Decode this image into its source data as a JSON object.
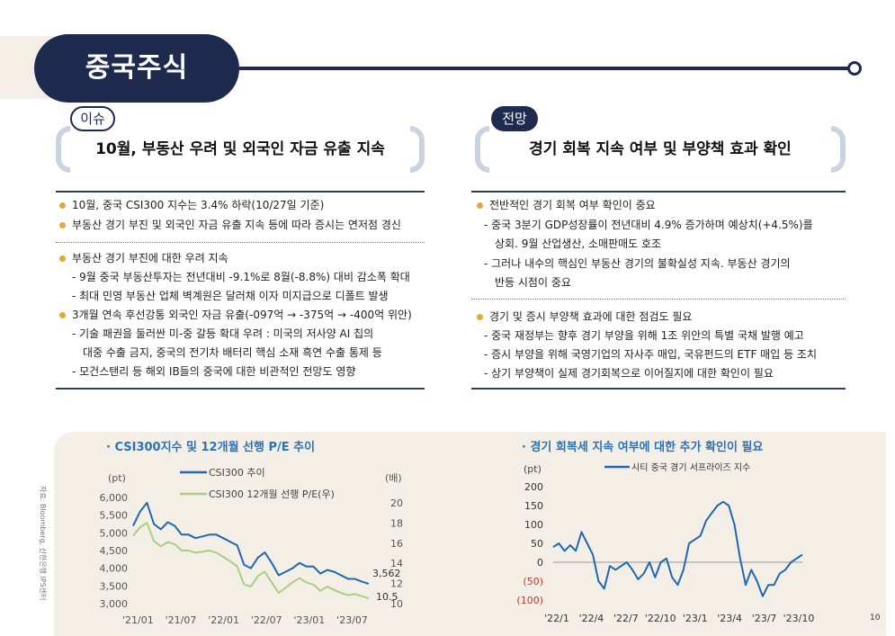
{
  "header": {
    "title": "중국주식"
  },
  "left": {
    "tag": "이슈",
    "headline": "10월, 부동산 우려 및 외국인 자금 유출 지속",
    "lines": [
      "10월, 중국 CSI300 지수는 3.4% 하락(10/27일 기준)",
      "부동산 경기 부진 및 외국인 자금 유출 지속 등에 따라 증시는 연저점 경신",
      "부동산 경기 부진에 대한 우려 지속",
      "- 9월 중국 부동산투자는 전년대비 -9.1%로 8월(-8.8%) 대비 감소폭 확대",
      "- 최대 민영 부동산 업체 벽계원은 달러채 이자 미지급으로 디폴트 발생",
      "3개월 연속 후선강통 외국인 자금 유출(-097억 → -375억 → -400억 위안)",
      "- 기술 패권을 둘러싼 미-중 갈등 확대 우려 : 미국의 저사양 AI 칩의",
      "대중 수출 금지, 중국의 전기차 배터리 핵심 소재 흑연 수출 통제 등",
      "- 모건스탠리 등 해외 IB들의 중국에 대한 비관적인 전망도 영향"
    ]
  },
  "right": {
    "tag": "전망",
    "headline": "경기 회복 지속 여부 및 부양책 효과 확인",
    "lines": [
      "전반적인 경기 회복 여부 확인이 중요",
      "- 중국 3분기 GDP성장률이 전년대비 4.9% 증가하며 예상치(+4.5%)를",
      "상회. 9월 산업생산, 소매판매도 호조",
      "- 그러나 내수의 핵심인 부동산 경기의 불확실성 지속. 부동산 경기의",
      "반등 시점이 중요",
      "경기 및 증시 부양책 효과에 대한 점검도 필요",
      "- 중국 재정부는 향후 경기 부양을 위해 1조 위안의 특별 국채 발행 예고",
      "- 증시 부양을 위해 국영기업의 자사주 매입, 국유펀드의 ETF 매입 등 조치",
      "- 상기 부양책이 실제 경기회복으로 이어질지에 대한 확인이 필요"
    ]
  },
  "source": "자료: Bloomberg, 신한은행 IPS센터",
  "page_number": "10",
  "colors": {
    "navy": "#1f2b4e",
    "blue": "#1f68b0",
    "green": "#a9cf7f",
    "bullet": "#e0a93a",
    "chart_bg": "#f4efe6"
  },
  "chart_data": [
    {
      "type": "line",
      "title": "· CSI300지수 및 12개월 선행 P/E 추이",
      "y_unit_left": "(pt)",
      "y_unit_right": "(배)",
      "x_ticks": [
        "'21/01",
        "'21/07",
        "'22/01",
        "'22/07",
        "'23/01",
        "'23/07"
      ],
      "y_ticks_left": [
        "6,000",
        "5,500",
        "5,000",
        "4,500",
        "4,000",
        "3,500",
        "3,000"
      ],
      "y_ticks_right": [
        "20",
        "18",
        "16",
        "14",
        "12",
        "10"
      ],
      "ylim_left": [
        3000,
        6000
      ],
      "ylim_right": [
        10,
        20
      ],
      "end_labels": [
        "3,562",
        "10.5"
      ],
      "series": [
        {
          "name": "CSI300 추이",
          "axis": "left",
          "x": [
            0,
            1,
            2,
            3,
            4,
            5,
            6,
            7,
            8,
            9,
            10,
            11,
            12,
            13,
            14,
            15,
            16,
            17,
            18,
            19,
            20,
            21,
            22,
            23,
            24,
            25,
            26,
            27,
            28,
            29,
            30,
            31,
            32,
            33,
            34
          ],
          "values": [
            5200,
            5600,
            5850,
            5250,
            5100,
            5300,
            5200,
            4950,
            4950,
            4850,
            4900,
            4950,
            4950,
            4850,
            4750,
            4650,
            4100,
            4000,
            4300,
            4450,
            4150,
            3800,
            3900,
            4000,
            4150,
            4050,
            4050,
            3850,
            3950,
            3900,
            3800,
            3700,
            3700,
            3620,
            3562
          ]
        },
        {
          "name": "CSI300 12개월 선행 P/E(우)",
          "axis": "right",
          "x": [
            0,
            1,
            2,
            3,
            4,
            5,
            6,
            7,
            8,
            9,
            10,
            11,
            12,
            13,
            14,
            15,
            16,
            17,
            18,
            19,
            20,
            21,
            22,
            23,
            24,
            25,
            26,
            27,
            28,
            29,
            30,
            31,
            32,
            33,
            34
          ],
          "values": [
            16.4,
            17.2,
            17.6,
            15.9,
            15.4,
            15.8,
            15.6,
            15.0,
            15.0,
            14.8,
            14.9,
            15.0,
            14.8,
            14.4,
            14.0,
            13.5,
            11.8,
            11.6,
            12.6,
            13.0,
            12.0,
            11.0,
            11.5,
            12.0,
            12.4,
            12.0,
            11.8,
            11.2,
            11.6,
            11.3,
            11.0,
            10.8,
            10.9,
            10.7,
            10.5
          ]
        }
      ]
    },
    {
      "type": "line",
      "title": "· 경기 회복세 지속 여부에 대한 추가 확인이 필요",
      "y_unit": "(pt)",
      "x_ticks": [
        "'22/1",
        "'22/4",
        "'22/7",
        "'22/10",
        "'23/1",
        "'23/4",
        "'23/7",
        "'23/10"
      ],
      "y_ticks": [
        "200",
        "150",
        "100",
        "50",
        "0",
        "(50)",
        "(100)"
      ],
      "ylim": [
        -100,
        200
      ],
      "series": [
        {
          "name": "시티 중국 경기 서프라이즈 지수",
          "x": [
            0,
            0.5,
            1,
            1.5,
            2,
            2.5,
            3,
            3.5,
            4,
            4.5,
            5,
            5.5,
            6,
            6.5,
            7,
            7.5,
            8,
            8.5,
            9,
            9.5,
            10,
            10.5,
            11,
            11.5,
            12,
            12.5,
            13,
            13.5,
            14,
            14.5,
            15,
            15.5,
            16,
            16.5,
            17,
            17.5,
            18,
            18.5,
            19,
            19.5,
            20,
            20.5,
            21,
            21.5,
            22
          ],
          "values": [
            40,
            50,
            30,
            45,
            30,
            80,
            50,
            20,
            -50,
            -70,
            -10,
            -20,
            -10,
            0,
            -20,
            -45,
            -30,
            0,
            -40,
            0,
            10,
            -40,
            -60,
            -20,
            50,
            60,
            70,
            110,
            130,
            150,
            160,
            150,
            100,
            10,
            -60,
            -20,
            -50,
            -90,
            -60,
            -60,
            -30,
            -20,
            0,
            10,
            20
          ]
        }
      ]
    }
  ]
}
